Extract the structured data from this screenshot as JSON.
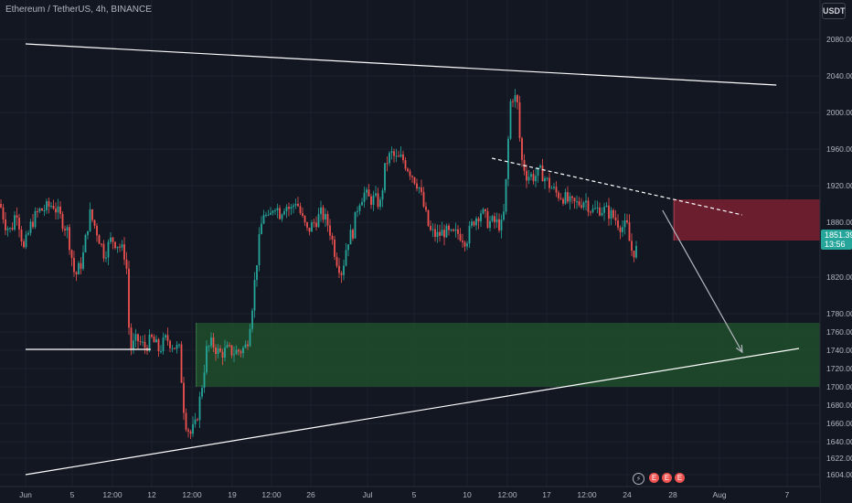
{
  "header": {
    "symbol_line": "Ethereum / TetherUS, 4h, BINANCE",
    "currency": "USDT"
  },
  "price_tag": {
    "price": "1851.39",
    "countdown": "13:56"
  },
  "indicator_icons": [
    "lightning-icon",
    "earnings-icon",
    "earnings-icon",
    "earnings-icon"
  ],
  "colors": {
    "background": "#131722",
    "up": "#26a69a",
    "down": "#ef5350",
    "supply_zone": "#7a2030",
    "demand_zone": "#1e4d2b",
    "drawing": "#ffffff"
  },
  "chart_data": {
    "type": "candlestick",
    "symbol": "ETH/USDT",
    "timeframe": "4h",
    "exchange": "BINANCE",
    "ylim": [
      1604,
      2100
    ],
    "y_ticks": [
      2080,
      2040,
      2000,
      1960,
      1920,
      1880,
      1851.39,
      1820,
      1780,
      1760,
      1740,
      1720,
      1700,
      1680,
      1660,
      1640,
      1622,
      1604
    ],
    "x_ticks": [
      "Jun",
      "5",
      "12:00",
      "12",
      "12:00",
      "19",
      "12:00",
      "26",
      "Jul",
      "5",
      "10",
      "12:00",
      "17",
      "12:00",
      "24",
      "28",
      "Aug",
      "7"
    ],
    "close_path": [
      [
        0,
        1900
      ],
      [
        6,
        1878
      ],
      [
        12,
        1870
      ],
      [
        18,
        1895
      ],
      [
        26,
        1850
      ],
      [
        34,
        1878
      ],
      [
        42,
        1892
      ],
      [
        50,
        1895
      ],
      [
        58,
        1900
      ],
      [
        66,
        1885
      ],
      [
        74,
        1870
      ],
      [
        82,
        1820
      ],
      [
        90,
        1838
      ],
      [
        98,
        1890
      ],
      [
        106,
        1870
      ],
      [
        114,
        1845
      ],
      [
        122,
        1862
      ],
      [
        130,
        1855
      ],
      [
        138,
        1842
      ],
      [
        142,
        1740
      ],
      [
        150,
        1752
      ],
      [
        158,
        1743
      ],
      [
        166,
        1752
      ],
      [
        174,
        1740
      ],
      [
        182,
        1753
      ],
      [
        190,
        1745
      ],
      [
        196,
        1740
      ],
      [
        202,
        1665
      ],
      [
        208,
        1648
      ],
      [
        214,
        1658
      ],
      [
        220,
        1695
      ],
      [
        226,
        1740
      ],
      [
        232,
        1748
      ],
      [
        240,
        1736
      ],
      [
        248,
        1740
      ],
      [
        256,
        1738
      ],
      [
        264,
        1740
      ],
      [
        270,
        1745
      ],
      [
        276,
        1790
      ],
      [
        282,
        1848
      ],
      [
        288,
        1892
      ],
      [
        294,
        1880
      ],
      [
        300,
        1902
      ],
      [
        306,
        1890
      ],
      [
        312,
        1900
      ],
      [
        318,
        1893
      ],
      [
        324,
        1905
      ],
      [
        330,
        1885
      ],
      [
        336,
        1870
      ],
      [
        344,
        1880
      ],
      [
        352,
        1890
      ],
      [
        360,
        1875
      ],
      [
        368,
        1840
      ],
      [
        374,
        1825
      ],
      [
        380,
        1860
      ],
      [
        386,
        1870
      ],
      [
        392,
        1902
      ],
      [
        398,
        1912
      ],
      [
        404,
        1905
      ],
      [
        410,
        1905
      ],
      [
        416,
        1900
      ],
      [
        422,
        1945
      ],
      [
        428,
        1955
      ],
      [
        434,
        1948
      ],
      [
        440,
        1950
      ],
      [
        446,
        1940
      ],
      [
        452,
        1930
      ],
      [
        458,
        1920
      ],
      [
        464,
        1895
      ],
      [
        470,
        1870
      ],
      [
        478,
        1865
      ],
      [
        486,
        1870
      ],
      [
        494,
        1865
      ],
      [
        502,
        1868
      ],
      [
        510,
        1860
      ],
      [
        518,
        1882
      ],
      [
        526,
        1892
      ],
      [
        534,
        1880
      ],
      [
        542,
        1880
      ],
      [
        550,
        1875
      ],
      [
        554,
        1930
      ],
      [
        558,
        2010
      ],
      [
        562,
        2020
      ],
      [
        566,
        2008
      ],
      [
        570,
        1950
      ],
      [
        576,
        1932
      ],
      [
        584,
        1930
      ],
      [
        592,
        1935
      ],
      [
        600,
        1922
      ],
      [
        608,
        1912
      ],
      [
        616,
        1908
      ],
      [
        624,
        1900
      ],
      [
        632,
        1900
      ],
      [
        640,
        1905
      ],
      [
        648,
        1892
      ],
      [
        656,
        1895
      ],
      [
        664,
        1892
      ],
      [
        672,
        1885
      ],
      [
        680,
        1875
      ],
      [
        686,
        1875
      ],
      [
        690,
        1850
      ],
      [
        694,
        1848
      ],
      [
        698,
        1851.39
      ]
    ],
    "zones": [
      {
        "name": "supply",
        "from_date": "2023-07-28",
        "y_range": [
          1860,
          1905
        ]
      },
      {
        "name": "demand",
        "from_date": "2023-06-16",
        "y_range": [
          1700,
          1770
        ]
      }
    ],
    "lines": [
      {
        "name": "upper-trendline",
        "points": [
          [
            "2023-06-01",
            2075
          ],
          [
            "2023-08-06",
            2030
          ]
        ]
      },
      {
        "name": "lower-trendline",
        "points": [
          [
            "2023-06-01",
            1604
          ],
          [
            "2023-08-08",
            1742
          ]
        ]
      },
      {
        "name": "horizontal-level",
        "points": [
          [
            "2023-06-01",
            1741
          ],
          [
            "2023-06-12",
            1741
          ]
        ]
      },
      {
        "name": "dashed-resistance",
        "style": "dashed",
        "points": [
          [
            "2023-07-12",
            1950
          ],
          [
            "2023-08-03",
            1888
          ]
        ]
      },
      {
        "name": "projection-arrow",
        "points": [
          [
            "2023-07-27",
            1893
          ],
          [
            "2023-08-03",
            1738
          ]
        ]
      }
    ],
    "grid": true
  }
}
